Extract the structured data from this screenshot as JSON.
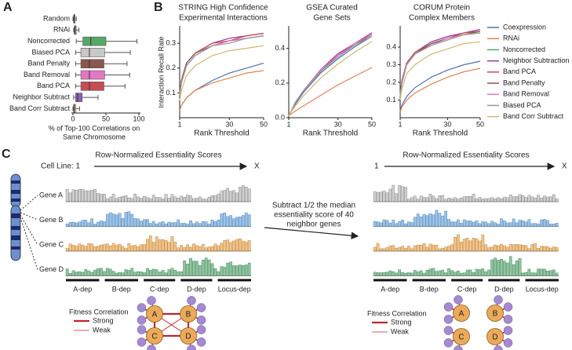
{
  "chart_data": [
    {
      "type": "box",
      "panel_label": "A",
      "x_label": [
        "% of Top-100 Correlations on",
        "Same Chromosome"
      ],
      "categories": [
        "Random",
        "RNAi",
        "Noncorrected",
        "Biased PCA",
        "Band Penalty",
        "Band Removal",
        "Band PCA",
        "Neighbor Subtract",
        "Band Corr Subtract"
      ],
      "boxes": [
        {
          "min": 0,
          "q1": 1,
          "median": 2,
          "q3": 3,
          "max": 5,
          "color": "#8c8c8c"
        },
        {
          "min": 1,
          "q1": 2,
          "median": 3,
          "q3": 5,
          "max": 9,
          "color": "#a89a8a"
        },
        {
          "min": 5,
          "q1": 15,
          "median": 27,
          "q3": 50,
          "max": 97,
          "color": "#55a868"
        },
        {
          "min": 4,
          "q1": 12,
          "median": 25,
          "q3": 48,
          "max": 87,
          "color": "#c8c8c8"
        },
        {
          "min": 4,
          "q1": 12,
          "median": 25,
          "q3": 47,
          "max": 82,
          "color": "#8c564b"
        },
        {
          "min": 4,
          "q1": 12,
          "median": 25,
          "q3": 48,
          "max": 86,
          "color": "#e377c2"
        },
        {
          "min": 4,
          "q1": 12,
          "median": 25,
          "q3": 47,
          "max": 79,
          "color": "#c44e52"
        },
        {
          "min": 1,
          "q1": 4,
          "median": 7,
          "q3": 14,
          "max": 38,
          "color": "#8b5fb5"
        },
        {
          "min": 0,
          "q1": 1,
          "median": 2,
          "q3": 4,
          "max": 10,
          "color": "#ccb974"
        }
      ],
      "xlim": [
        0,
        100
      ],
      "xticks": [
        0,
        50,
        100
      ]
    },
    {
      "type": "line",
      "panel_label": "B",
      "y_label": "Interaction Recall Rate",
      "x_label": "Rank Threshold",
      "x": [
        1,
        2,
        5,
        10,
        20,
        30,
        40,
        50
      ],
      "xlim": [
        1,
        50
      ],
      "xticks": [
        1,
        30,
        50
      ],
      "series": [
        {
          "name": "Coexpression",
          "color": "#4c72b0"
        },
        {
          "name": "RNAi",
          "color": "#dd8452"
        },
        {
          "name": "Noncorrected",
          "color": "#55a868"
        },
        {
          "name": "Neighbor Subtraction",
          "color": "#9b30a0"
        },
        {
          "name": "Band PCA",
          "color": "#c44e52"
        },
        {
          "name": "Band Penalty",
          "color": "#8c564b"
        },
        {
          "name": "Band Removal",
          "color": "#e377c2"
        },
        {
          "name": "Biased PCA",
          "color": "#999999"
        },
        {
          "name": "Band Corr Subtract",
          "color": "#ccb974"
        }
      ],
      "panels": [
        {
          "title": [
            "STRING High Confidence",
            "Experimental Interactions"
          ],
          "ylim": [
            0,
            0.37
          ],
          "yticks": [
            0.1,
            0.2,
            0.3
          ],
          "values": [
            [
              0.03,
              0.05,
              0.08,
              0.11,
              0.15,
              0.18,
              0.2,
              0.22
            ],
            [
              0.03,
              0.05,
              0.08,
              0.11,
              0.14,
              0.16,
              0.18,
              0.19
            ],
            [
              0.09,
              0.14,
              0.21,
              0.25,
              0.29,
              0.31,
              0.32,
              0.33
            ],
            [
              0.1,
              0.15,
              0.22,
              0.26,
              0.3,
              0.32,
              0.33,
              0.34
            ],
            [
              0.1,
              0.15,
              0.22,
              0.26,
              0.3,
              0.31,
              0.33,
              0.34
            ],
            [
              0.1,
              0.15,
              0.22,
              0.26,
              0.29,
              0.31,
              0.32,
              0.33
            ],
            [
              0.09,
              0.14,
              0.21,
              0.25,
              0.29,
              0.31,
              0.32,
              0.33
            ],
            [
              0.09,
              0.14,
              0.21,
              0.25,
              0.29,
              0.3,
              0.32,
              0.33
            ],
            [
              0.07,
              0.11,
              0.17,
              0.21,
              0.25,
              0.27,
              0.28,
              0.29
            ]
          ]
        },
        {
          "title": [
            "GSEA Curated",
            "Gene Sets"
          ],
          "ylim": [
            0,
            0.53
          ],
          "yticks": [
            {
              "value": 0,
              "label": "0.0"
            },
            0.2,
            0.4
          ],
          "values": [
            [
              0.01,
              0.03,
              0.08,
              0.15,
              0.26,
              0.34,
              0.41,
              0.47
            ],
            [
              0.01,
              0.02,
              0.04,
              0.07,
              0.13,
              0.19,
              0.24,
              0.29
            ],
            [
              0.01,
              0.03,
              0.09,
              0.16,
              0.28,
              0.36,
              0.43,
              0.48
            ],
            [
              0.01,
              0.03,
              0.09,
              0.16,
              0.28,
              0.37,
              0.43,
              0.49
            ],
            [
              0.01,
              0.03,
              0.09,
              0.16,
              0.28,
              0.36,
              0.43,
              0.48
            ],
            [
              0.01,
              0.03,
              0.09,
              0.16,
              0.27,
              0.36,
              0.42,
              0.48
            ],
            [
              0.01,
              0.03,
              0.09,
              0.16,
              0.28,
              0.36,
              0.43,
              0.48
            ],
            [
              0.01,
              0.03,
              0.09,
              0.16,
              0.27,
              0.35,
              0.42,
              0.47
            ],
            [
              0.01,
              0.03,
              0.07,
              0.13,
              0.23,
              0.31,
              0.38,
              0.44
            ]
          ]
        },
        {
          "title": [
            "CORUM Protein",
            "Complex Members"
          ],
          "ylim": [
            0,
            0.52
          ],
          "yticks": [
            0.1,
            0.2,
            0.3,
            0.4
          ],
          "values": [
            [
              0.04,
              0.07,
              0.12,
              0.17,
              0.23,
              0.27,
              0.3,
              0.32
            ],
            [
              0.03,
              0.06,
              0.1,
              0.14,
              0.19,
              0.23,
              0.26,
              0.28
            ],
            [
              0.12,
              0.2,
              0.3,
              0.36,
              0.42,
              0.45,
              0.47,
              0.49
            ],
            [
              0.13,
              0.21,
              0.31,
              0.37,
              0.43,
              0.46,
              0.48,
              0.5
            ],
            [
              0.12,
              0.2,
              0.31,
              0.37,
              0.42,
              0.45,
              0.48,
              0.49
            ],
            [
              0.12,
              0.2,
              0.3,
              0.36,
              0.42,
              0.45,
              0.47,
              0.49
            ],
            [
              0.12,
              0.2,
              0.3,
              0.36,
              0.41,
              0.45,
              0.47,
              0.48
            ],
            [
              0.12,
              0.19,
              0.3,
              0.36,
              0.41,
              0.44,
              0.47,
              0.48
            ],
            [
              0.1,
              0.16,
              0.25,
              0.3,
              0.36,
              0.39,
              0.42,
              0.43
            ]
          ]
        }
      ]
    }
  ],
  "diagram": {
    "panel_label": "C",
    "middle_text": [
      "Subtract 1/2 the median",
      "essentiality score of 40",
      "neighbor genes"
    ],
    "left": {
      "title": "Row-Normalized Essentiality Scores",
      "axis_start": "Cell Line: 1",
      "axis_end": "X",
      "genes": [
        "Gene A",
        "Gene B",
        "Gene C",
        "Gene D"
      ],
      "groups": [
        "A-dep",
        "B-dep",
        "C-dep",
        "D-dep",
        "Locus-dep"
      ],
      "legend": {
        "title": "Fitness Correlation",
        "strong": "Strong",
        "weak": "Weak"
      },
      "nodes": [
        "A",
        "B",
        "C",
        "D"
      ]
    },
    "right": {
      "title": "Row-Normalized Essentiality Scores",
      "axis_start": "1",
      "axis_end": "X",
      "groups": [
        "A-dep",
        "B-dep",
        "C-dep",
        "D-dep",
        "Locus-dep"
      ],
      "legend": {
        "title": "Fitness Correlation",
        "strong": "Strong",
        "weak": "Weak"
      },
      "nodes": [
        "A",
        "B",
        "C",
        "D"
      ]
    }
  }
}
